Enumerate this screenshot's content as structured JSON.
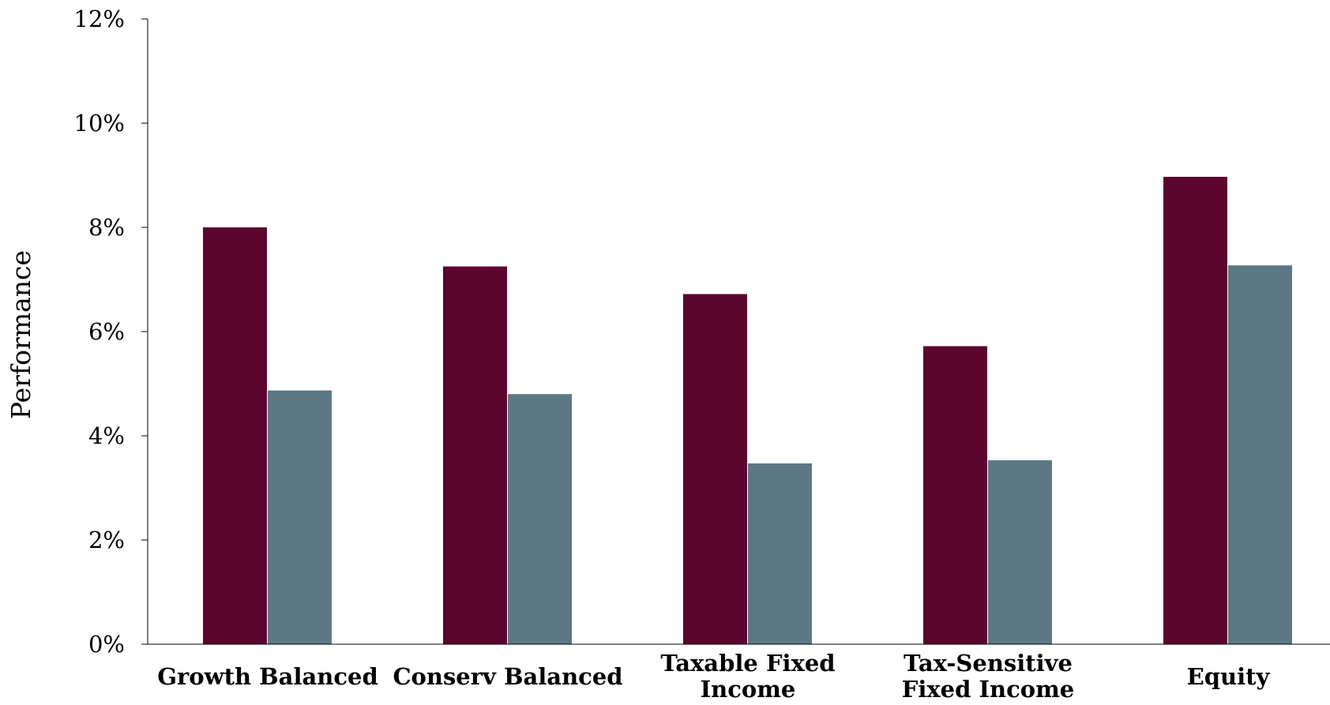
{
  "chart_data": {
    "type": "bar",
    "title": "",
    "xlabel": "",
    "ylabel": "Performance",
    "ylim": [
      0,
      12
    ],
    "y_ticks": [
      0,
      2,
      4,
      6,
      8,
      10,
      12
    ],
    "y_tick_labels": [
      "0%",
      "2%",
      "4%",
      "6%",
      "8%",
      "10%",
      "12%"
    ],
    "y_unit": "%",
    "grid": false,
    "legend": "none",
    "categories": [
      [
        "Growth Balanced"
      ],
      [
        "Conserv Balanced"
      ],
      [
        "Taxable Fixed",
        "Income"
      ],
      [
        "Tax-Sensitive",
        "Fixed Income"
      ],
      [
        "Equity"
      ]
    ],
    "series": [
      {
        "values": [
          8.0,
          7.25,
          6.72,
          5.72,
          8.97
        ],
        "color": "#5c052f"
      },
      {
        "values": [
          4.87,
          4.8,
          3.47,
          3.53,
          7.27
        ],
        "color": "#5c7884"
      }
    ]
  }
}
